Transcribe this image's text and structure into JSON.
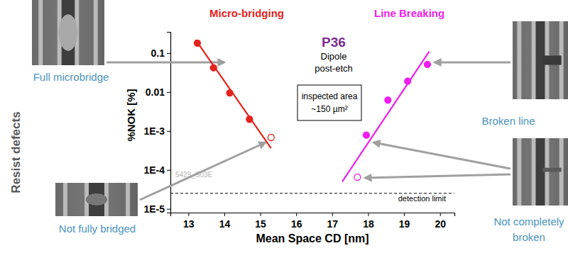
{
  "chart_data": {
    "type": "scatter",
    "title": "P36",
    "subtitle": [
      "Dipole",
      "post-etch"
    ],
    "note": [
      "inspected area",
      "~150 µm²"
    ],
    "side_label": "Resist defects",
    "x_label": "Mean Space CD [nm]",
    "y_label": "%NOK [%]",
    "log": "y",
    "xlim": [
      12.5,
      20.4
    ],
    "ylim": [
      8e-06,
      0.35
    ],
    "xticks": [
      13,
      14,
      15,
      16,
      17,
      18,
      19,
      20
    ],
    "yticks": [
      {
        "value": 1e-05,
        "label": "1E-5"
      },
      {
        "value": 0.0001,
        "label": "1E-4"
      },
      {
        "value": 0.001,
        "label": "1E-3"
      },
      0.01,
      0.1
    ],
    "series": [
      {
        "name": "Micro-bridging",
        "color": "#e3231c",
        "marker": "circle",
        "x": [
          13.25,
          13.7,
          14.15,
          14.7
        ],
        "values": [
          0.18,
          0.042,
          0.0095,
          0.002
        ]
      },
      {
        "color": "#e3231c",
        "marker": "open-circle",
        "x": [
          15.3
        ],
        "values": [
          0.00068
        ]
      },
      {
        "type": "line",
        "color": "#e3231c",
        "x": [
          13.2,
          15.3
        ],
        "values": [
          0.22,
          0.00036
        ]
      },
      {
        "name": "Line Breaking",
        "color": "#ee1fee",
        "marker": "circle",
        "x": [
          17.95,
          18.55,
          19.1,
          19.65
        ],
        "values": [
          0.00078,
          0.0062,
          0.019,
          0.051
        ]
      },
      {
        "color": "#ee1fee",
        "marker": "open-circle",
        "x": [
          17.7
        ],
        "values": [
          6.5e-05
        ]
      },
      {
        "type": "line",
        "color": "#ee1fee",
        "x": [
          17.28,
          19.7
        ],
        "values": [
          5e-05,
          0.11
        ]
      }
    ],
    "annotations": [
      {
        "text": "Full microbridge"
      },
      {
        "text": "Not fully bridged"
      },
      {
        "text": "Broken line"
      },
      {
        "text": "Not completely broken"
      },
      {
        "text": "5429_S03E"
      },
      {
        "text": "detection limit",
        "y": 2.5e-05
      }
    ]
  }
}
